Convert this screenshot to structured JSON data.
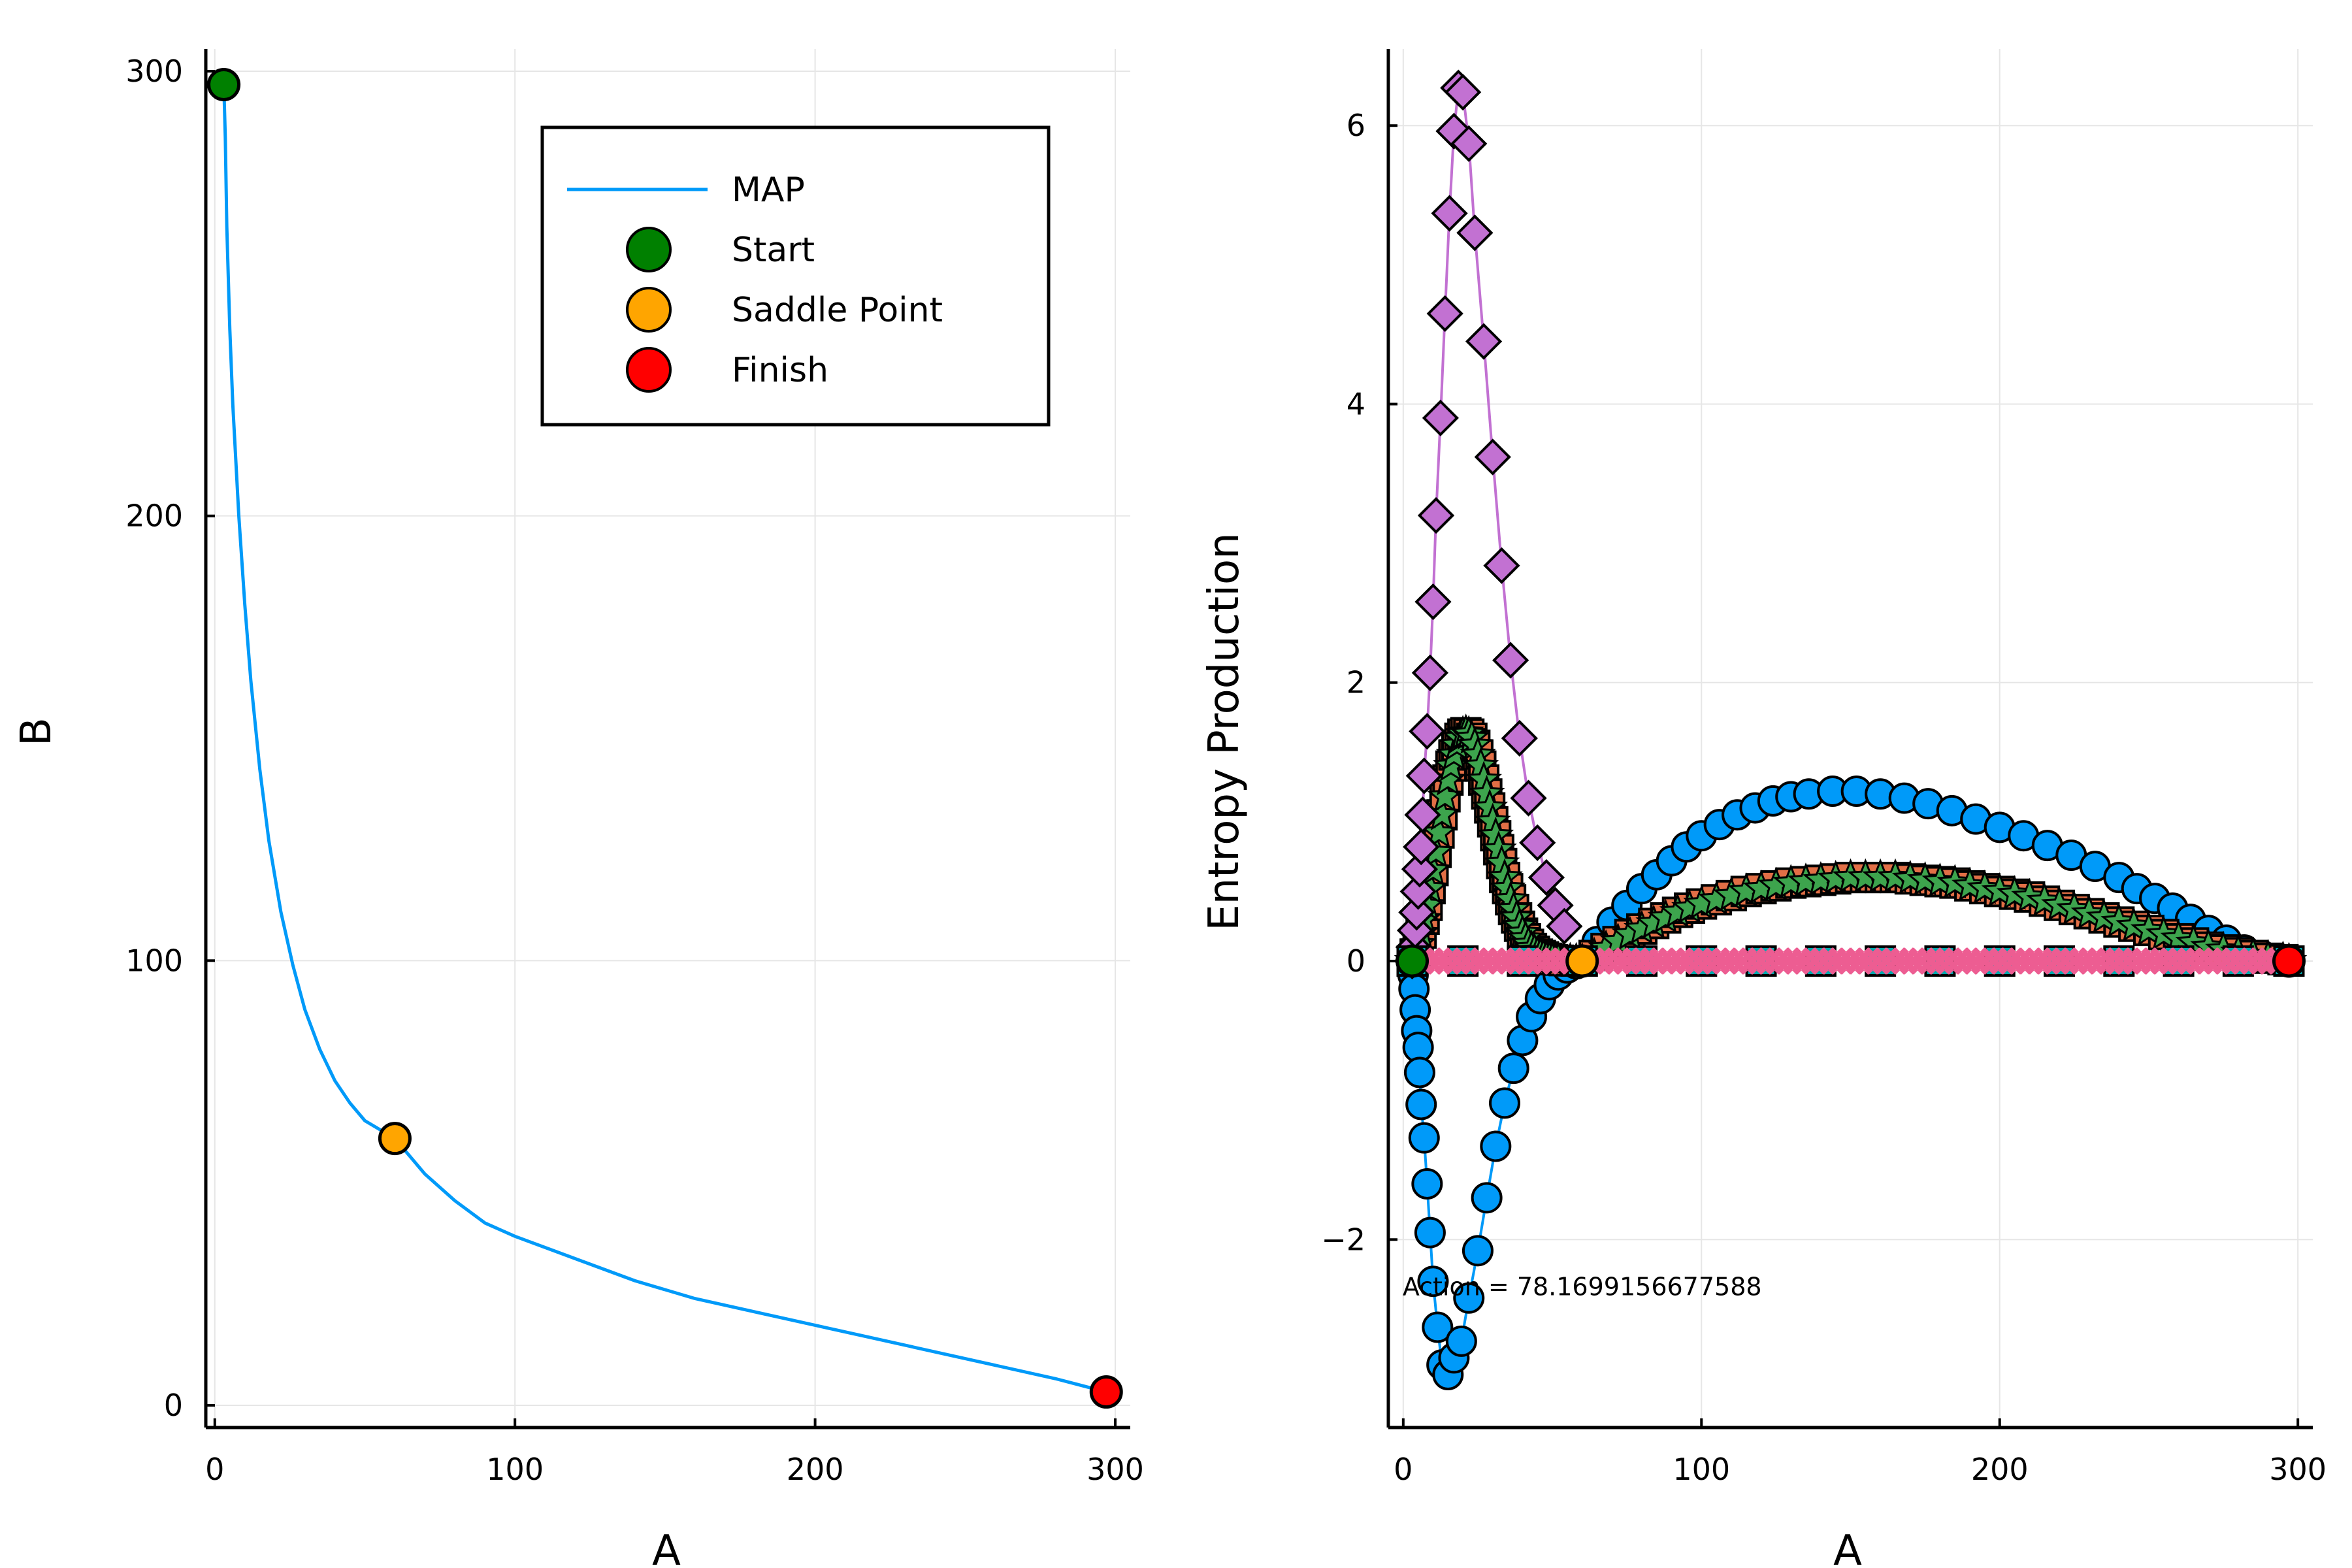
{
  "chart_data": [
    {
      "type": "line",
      "xlabel": "A",
      "ylabel": "B",
      "xlim": [
        -3,
        305
      ],
      "ylim": [
        -5,
        305
      ],
      "xticks": [
        0,
        100,
        200,
        300
      ],
      "yticks": [
        0,
        100,
        200,
        300
      ],
      "grid": true,
      "legend_position": "top-right",
      "series": [
        {
          "name": "MAP",
          "color": "#009af9",
          "x": [
            3,
            3.5,
            4,
            5,
            6,
            8,
            10,
            12,
            15,
            18,
            22,
            26,
            30,
            35,
            40,
            45,
            50,
            55,
            60,
            70,
            80,
            90,
            100,
            120,
            140,
            160,
            180,
            200,
            220,
            240,
            260,
            280,
            297
          ],
          "y": [
            297,
            285,
            265,
            242,
            225,
            200,
            180,
            163,
            143,
            127,
            111,
            99,
            89,
            80,
            73,
            68,
            64,
            62,
            60,
            52,
            46,
            41,
            38,
            33,
            28,
            24,
            21,
            18,
            15,
            12,
            9,
            6,
            3
          ]
        }
      ],
      "markers": [
        {
          "name": "Start",
          "x": 3,
          "y": 297,
          "color": "#008000"
        },
        {
          "name": "Saddle Point",
          "x": 60,
          "y": 60,
          "color": "#ffa500"
        },
        {
          "name": "Finish",
          "x": 297,
          "y": 3,
          "color": "#ff0000"
        }
      ]
    },
    {
      "type": "scatter",
      "xlabel": "A",
      "ylabel": "Entropy Production",
      "xlim": [
        -5,
        305
      ],
      "ylim": [
        -3.35,
        6.55
      ],
      "xticks": [
        0,
        100,
        200,
        300
      ],
      "yticks": [
        -2,
        0,
        2,
        4,
        6
      ],
      "grid": true,
      "annotation": "Action = 78.1699156677588",
      "annotation_position": {
        "x": 60,
        "y": -2.4
      },
      "series": [
        {
          "marker": "circle",
          "color": "#009af9",
          "x": [
            3,
            3.3,
            3.6,
            4,
            4.5,
            5,
            5.5,
            6,
            7,
            8,
            9,
            10,
            11.5,
            13,
            15,
            17,
            19.5,
            22,
            25,
            28,
            31,
            34,
            37,
            40,
            43,
            46,
            49,
            52,
            55,
            58,
            60,
            65,
            70,
            75,
            80,
            85,
            90,
            95,
            100,
            106,
            112,
            118,
            124,
            130,
            136,
            144,
            152,
            160,
            168,
            176,
            184,
            192,
            200,
            208,
            216,
            224,
            232,
            240,
            246,
            252,
            258,
            264,
            270,
            276,
            282,
            288,
            294,
            297
          ],
          "y": [
            0,
            -0.1,
            -0.2,
            -0.35,
            -0.5,
            -0.62,
            -0.8,
            -1.03,
            -1.27,
            -1.6,
            -1.95,
            -2.3,
            -2.63,
            -2.9,
            -2.97,
            -2.85,
            -2.73,
            -2.42,
            -2.08,
            -1.7,
            -1.33,
            -1.02,
            -0.77,
            -0.57,
            -0.4,
            -0.27,
            -0.17,
            -0.1,
            -0.05,
            -0.02,
            0,
            0.14,
            0.28,
            0.4,
            0.52,
            0.62,
            0.72,
            0.82,
            0.9,
            0.98,
            1.05,
            1.1,
            1.15,
            1.18,
            1.2,
            1.22,
            1.22,
            1.2,
            1.17,
            1.13,
            1.08,
            1.02,
            0.96,
            0.9,
            0.83,
            0.76,
            0.68,
            0.6,
            0.52,
            0.45,
            0.38,
            0.3,
            0.22,
            0.15,
            0.08,
            0.04,
            0.01,
            0
          ]
        },
        {
          "marker": "square",
          "color": "#e26f46",
          "x": [
            3,
            4,
            5,
            6,
            7,
            8,
            9,
            10,
            11,
            12,
            13,
            14,
            15,
            16,
            17,
            18,
            19,
            20,
            21,
            22,
            23,
            24,
            25,
            26,
            27,
            28,
            29,
            30,
            31,
            32,
            33,
            34,
            35,
            36,
            37,
            38,
            39,
            40,
            41,
            42,
            43,
            44,
            45,
            46,
            47,
            48,
            49,
            50,
            52,
            54,
            56,
            58,
            60,
            64,
            68,
            72,
            76,
            80,
            84,
            88,
            92,
            96,
            100,
            105,
            110,
            115,
            120,
            125,
            130,
            135,
            140,
            145,
            150,
            155,
            160,
            165,
            170,
            175,
            180,
            185,
            190,
            195,
            200,
            205,
            210,
            215,
            220,
            225,
            230,
            235,
            240,
            245,
            250,
            255,
            260,
            265,
            270,
            275,
            280,
            285,
            290,
            295,
            297
          ],
          "y": [
            0,
            0.05,
            0.12,
            0.2,
            0.3,
            0.4,
            0.52,
            0.65,
            0.78,
            0.92,
            1.05,
            1.18,
            1.3,
            1.4,
            1.48,
            1.55,
            1.6,
            1.63,
            1.64,
            1.63,
            1.6,
            1.55,
            1.48,
            1.4,
            1.3,
            1.2,
            1.1,
            1.0,
            0.9,
            0.8,
            0.7,
            0.6,
            0.52,
            0.44,
            0.37,
            0.31,
            0.25,
            0.2,
            0.16,
            0.12,
            0.09,
            0.07,
            0.05,
            0.04,
            0.03,
            0.02,
            0.015,
            0.01,
            0.006,
            0.003,
            0.001,
            0,
            0,
            0.04,
            0.09,
            0.14,
            0.19,
            0.23,
            0.27,
            0.31,
            0.35,
            0.38,
            0.41,
            0.44,
            0.47,
            0.5,
            0.52,
            0.54,
            0.56,
            0.57,
            0.58,
            0.59,
            0.6,
            0.6,
            0.6,
            0.6,
            0.59,
            0.58,
            0.57,
            0.56,
            0.54,
            0.52,
            0.5,
            0.48,
            0.46,
            0.43,
            0.4,
            0.37,
            0.34,
            0.31,
            0.28,
            0.25,
            0.22,
            0.19,
            0.16,
            0.13,
            0.1,
            0.08,
            0.06,
            0.04,
            0.02,
            0.01,
            0
          ]
        },
        {
          "marker": "star",
          "color": "#3da44d",
          "x": [
            3,
            4,
            5,
            6,
            7,
            8,
            9,
            10,
            11,
            12,
            13,
            14,
            15,
            16,
            17,
            18,
            19,
            20,
            21,
            22,
            23,
            24,
            25,
            26,
            27,
            28,
            29,
            30,
            31,
            32,
            33,
            34,
            35,
            36,
            37,
            38,
            39,
            40,
            41,
            42,
            43,
            44,
            45,
            46,
            47,
            48,
            49,
            50,
            52,
            54,
            56,
            58,
            60,
            64,
            68,
            72,
            76,
            80,
            84,
            88,
            92,
            96,
            100,
            105,
            110,
            115,
            120,
            125,
            130,
            135,
            140,
            145,
            150,
            155,
            160,
            165,
            170,
            175,
            180,
            185,
            190,
            195,
            200,
            205,
            210,
            215,
            220,
            225,
            230,
            235,
            240,
            245,
            250,
            255,
            260,
            265,
            270,
            275,
            280,
            285,
            290,
            295,
            297
          ],
          "y": [
            0,
            0.05,
            0.12,
            0.2,
            0.3,
            0.4,
            0.52,
            0.65,
            0.78,
            0.92,
            1.05,
            1.18,
            1.3,
            1.4,
            1.48,
            1.55,
            1.6,
            1.63,
            1.64,
            1.63,
            1.6,
            1.55,
            1.48,
            1.4,
            1.3,
            1.2,
            1.1,
            1.0,
            0.9,
            0.8,
            0.7,
            0.6,
            0.52,
            0.44,
            0.37,
            0.31,
            0.25,
            0.2,
            0.16,
            0.12,
            0.09,
            0.07,
            0.05,
            0.04,
            0.03,
            0.02,
            0.015,
            0.01,
            0.006,
            0.003,
            0.001,
            0,
            0,
            0.04,
            0.09,
            0.14,
            0.19,
            0.23,
            0.27,
            0.31,
            0.35,
            0.38,
            0.41,
            0.44,
            0.47,
            0.5,
            0.52,
            0.54,
            0.56,
            0.57,
            0.58,
            0.59,
            0.6,
            0.6,
            0.6,
            0.6,
            0.59,
            0.58,
            0.57,
            0.56,
            0.54,
            0.52,
            0.5,
            0.48,
            0.46,
            0.43,
            0.4,
            0.37,
            0.34,
            0.31,
            0.28,
            0.25,
            0.22,
            0.19,
            0.16,
            0.13,
            0.1,
            0.08,
            0.06,
            0.04,
            0.02,
            0.01,
            0
          ]
        },
        {
          "marker": "diamond",
          "color": "#c271d2",
          "x": [
            3,
            3.5,
            4,
            4.5,
            5,
            5.5,
            6,
            6.5,
            7,
            8,
            9,
            10,
            11,
            12.5,
            14,
            15.5,
            17,
            18.5,
            20,
            22,
            24,
            27,
            30,
            33,
            36,
            39,
            42,
            45,
            48,
            51,
            54
          ],
          "y": [
            0,
            0.1,
            0.22,
            0.35,
            0.5,
            0.66,
            0.82,
            1.05,
            1.33,
            1.65,
            2.07,
            2.58,
            3.2,
            3.9,
            4.65,
            5.37,
            5.96,
            6.27,
            6.24,
            5.87,
            5.23,
            4.45,
            3.62,
            2.84,
            2.16,
            1.6,
            1.17,
            0.85,
            0.6,
            0.4,
            0.25
          ]
        },
        {
          "marker": "circle",
          "color": "#ac8d18",
          "x": [
            3,
            20,
            40,
            60,
            80,
            100,
            120,
            140,
            160,
            180,
            200,
            220,
            240,
            260,
            280,
            297
          ],
          "y": [
            0,
            0,
            0,
            0,
            0,
            0,
            0,
            0,
            0,
            0,
            0,
            0,
            0,
            0,
            0,
            0
          ]
        },
        {
          "marker": "square",
          "color": "#00a9ad",
          "x": [
            3,
            20,
            40,
            60,
            80,
            100,
            120,
            140,
            160,
            180,
            200,
            220,
            240,
            260,
            280,
            297
          ],
          "y": [
            0,
            0,
            0,
            0,
            0,
            0,
            0,
            0,
            0,
            0,
            0,
            0,
            0,
            0,
            0,
            0
          ]
        },
        {
          "marker": "x",
          "color": "#ed5d92",
          "x": [
            3,
            6,
            9,
            12,
            15,
            18,
            21,
            24,
            27,
            30,
            33,
            36,
            39,
            42,
            45,
            48,
            51,
            54,
            57,
            60,
            63,
            66,
            69,
            72,
            75,
            78,
            81,
            84,
            87,
            90,
            93,
            96,
            99,
            102,
            105,
            108,
            111,
            114,
            117,
            120,
            123,
            126,
            129,
            132,
            135,
            138,
            141,
            144,
            147,
            150,
            153,
            156,
            159,
            162,
            165,
            168,
            171,
            174,
            177,
            180,
            183,
            186,
            189,
            192,
            195,
            198,
            201,
            204,
            207,
            210,
            213,
            216,
            219,
            222,
            225,
            228,
            231,
            234,
            237,
            240,
            243,
            246,
            249,
            252,
            255,
            258,
            261,
            264,
            267,
            270,
            273,
            276,
            279,
            282,
            285,
            288,
            291,
            294,
            297
          ],
          "y": [
            0,
            0,
            0,
            0,
            0,
            0,
            0,
            0,
            0,
            0,
            0,
            0,
            0,
            0,
            0,
            0,
            0,
            0,
            0,
            0,
            0,
            0,
            0,
            0,
            0,
            0,
            0,
            0,
            0,
            0,
            0,
            0,
            0,
            0,
            0,
            0,
            0,
            0,
            0,
            0,
            0,
            0,
            0,
            0,
            0,
            0,
            0,
            0,
            0,
            0,
            0,
            0,
            0,
            0,
            0,
            0,
            0,
            0,
            0,
            0,
            0,
            0,
            0,
            0,
            0,
            0,
            0,
            0,
            0,
            0,
            0,
            0,
            0,
            0,
            0,
            0,
            0,
            0,
            0,
            0,
            0,
            0,
            0,
            0,
            0,
            0,
            0,
            0,
            0,
            0,
            0,
            0,
            0,
            0,
            0,
            0,
            0,
            0,
            0
          ]
        }
      ],
      "markers": [
        {
          "name": "Start",
          "x": 3,
          "y": 0,
          "color": "#008000"
        },
        {
          "name": "Saddle Point",
          "x": 60,
          "y": 0,
          "color": "#ffa500"
        },
        {
          "name": "Finish",
          "x": 297,
          "y": 0,
          "color": "#ff0000"
        }
      ]
    }
  ]
}
